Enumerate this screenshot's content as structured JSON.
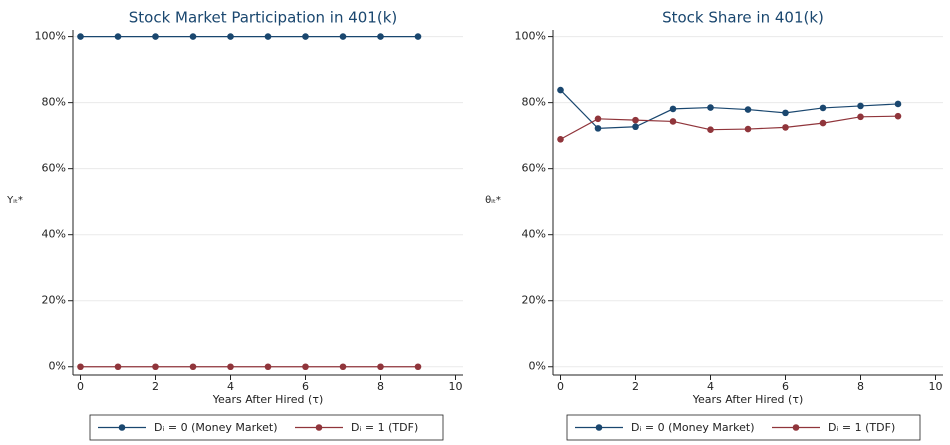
{
  "chart_data": [
    {
      "type": "line",
      "title": "Stock Market Participation in 401(k)",
      "xlabel": "Years After Hired (τ)",
      "ylabel": "Yᵢₜ*",
      "x": [
        0,
        1,
        2,
        3,
        4,
        5,
        6,
        7,
        8,
        9
      ],
      "series": [
        {
          "name": "Dᵢ = 0 (Money Market)",
          "color": "#1a476f",
          "values": [
            100,
            100,
            100,
            100,
            100,
            100,
            100,
            100,
            100,
            100
          ]
        },
        {
          "name": "Dᵢ = 1 (TDF)",
          "color": "#90353b",
          "values": [
            0,
            0,
            0,
            0,
            0,
            0,
            0,
            0,
            0,
            0
          ]
        }
      ],
      "xlim": [
        -0.2,
        10.2
      ],
      "xticks": [
        0,
        2,
        4,
        6,
        8,
        10
      ],
      "ylim": [
        -2.5,
        102
      ],
      "yticks": [
        {
          "value": 0,
          "label": "0%"
        },
        {
          "value": 20,
          "label": "20%"
        },
        {
          "value": 40,
          "label": "40%"
        },
        {
          "value": 60,
          "label": "60%"
        },
        {
          "value": 80,
          "label": "80%"
        },
        {
          "value": 100,
          "label": "100%"
        }
      ],
      "grid": true,
      "legend": "bottom"
    },
    {
      "type": "line",
      "title": "Stock Share in 401(k)",
      "xlabel": "Years After Hired (τ)",
      "ylabel": "θᵢₜ*",
      "x": [
        0,
        1,
        2,
        3,
        4,
        5,
        6,
        7,
        8,
        9
      ],
      "series": [
        {
          "name": "Dᵢ = 0 (Money Market)",
          "color": "#1a476f",
          "values": [
            83.8,
            72.2,
            72.7,
            78.1,
            78.5,
            77.9,
            76.9,
            78.4,
            79,
            79.6
          ]
        },
        {
          "name": "Dᵢ = 1 (TDF)",
          "color": "#90353b",
          "values": [
            68.9,
            75.1,
            74.7,
            74.3,
            71.8,
            72,
            72.5,
            73.8,
            75.7,
            75.9
          ]
        }
      ],
      "xlim": [
        -0.2,
        10.2
      ],
      "xticks": [
        0,
        2,
        4,
        6,
        8,
        10
      ],
      "ylim": [
        -2.5,
        102
      ],
      "yticks": [
        {
          "value": 0,
          "label": "0%"
        },
        {
          "value": 20,
          "label": "20%"
        },
        {
          "value": 40,
          "label": "40%"
        },
        {
          "value": 60,
          "label": "60%"
        },
        {
          "value": 80,
          "label": "80%"
        },
        {
          "value": 100,
          "label": "100%"
        }
      ],
      "grid": true,
      "legend": "bottom"
    }
  ]
}
